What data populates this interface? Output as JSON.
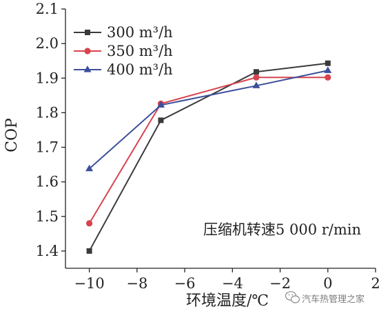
{
  "chart_data": {
    "type": "line",
    "title": "",
    "xlabel": "环境温度/℃",
    "ylabel": "COP",
    "xlim": [
      -11,
      2
    ],
    "ylim": [
      1.35,
      2.1
    ],
    "x_ticks": [
      -10,
      -8,
      -6,
      -4,
      -2,
      0,
      2
    ],
    "x_tick_labels": [
      "−10",
      "−8",
      "−6",
      "−4",
      "−2",
      "0",
      "2"
    ],
    "y_ticks": [
      1.4,
      1.5,
      1.6,
      1.7,
      1.8,
      1.9,
      2.0,
      2.1
    ],
    "y_tick_labels": [
      "1.4",
      "1.5",
      "1.6",
      "1.7",
      "1.8",
      "1.9",
      "2.0",
      "2.1"
    ],
    "grid": false,
    "legend_position": "top-left",
    "annotation": "压缩机转速5 000 r/min",
    "series": [
      {
        "name": "300 m³/h",
        "color": "#3a3a3a",
        "marker": "square",
        "x": [
          -10,
          -7,
          -3,
          0
        ],
        "y": [
          1.4,
          1.778,
          1.918,
          1.943
        ]
      },
      {
        "name": "350 m³/h",
        "color": "#d7434f",
        "marker": "circle",
        "x": [
          -10,
          -7,
          -3,
          0
        ],
        "y": [
          1.48,
          1.826,
          1.902,
          1.902
        ]
      },
      {
        "name": "400 m³/h",
        "color": "#3b4f9b",
        "marker": "triangle",
        "x": [
          -10,
          -7,
          -3,
          0
        ],
        "y": [
          1.638,
          1.822,
          1.878,
          1.922
        ]
      }
    ]
  },
  "watermark": {
    "text": "汽车热管理之家",
    "icon": "wechat-logo-icon"
  }
}
